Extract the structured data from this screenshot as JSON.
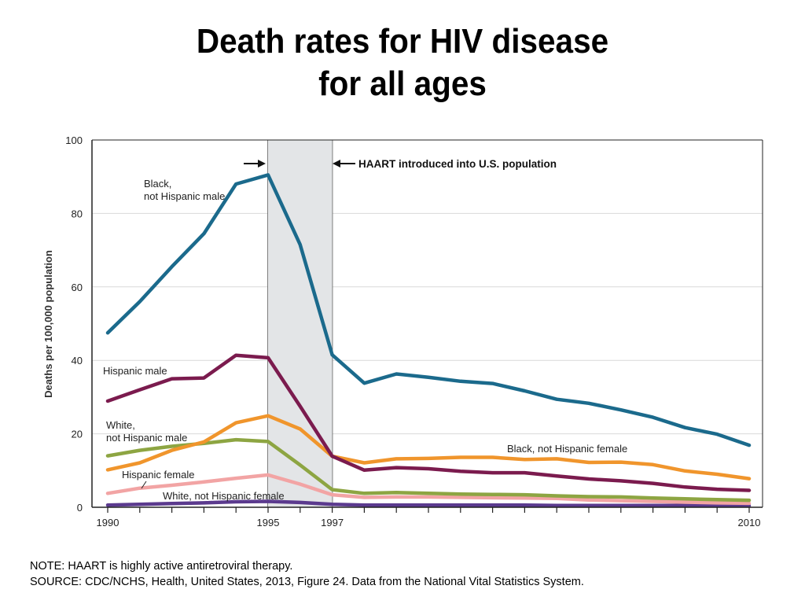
{
  "slide": {
    "title_line1": "Death rates for HIV disease",
    "title_line2": "for all ages",
    "note": "NOTE: HAART is highly active antiretroviral therapy.",
    "source": "SOURCE: CDC/NCHS, Health, United States, 2013, Figure 24. Data from the National Vital Statistics System."
  },
  "chart_data": {
    "type": "line",
    "title": "",
    "xlabel": "",
    "ylabel": "Deaths per 100,000 population",
    "xlim": [
      1990,
      2010
    ],
    "ylim": [
      0,
      100
    ],
    "x_tick_labels": [
      "1990",
      "1995",
      "1997",
      "2010"
    ],
    "y_tick_labels": [
      "0",
      "20",
      "40",
      "60",
      "80",
      "100"
    ],
    "grid": "horizontal",
    "shaded_period": {
      "start": 1995,
      "end": 1997,
      "color": "#e3e5e7"
    },
    "annotation": "HAART introduced into U.S. population",
    "x": [
      1990,
      1991,
      1992,
      1993,
      1994,
      1995,
      1996,
      1997,
      1998,
      1999,
      2000,
      2001,
      2002,
      2003,
      2004,
      2005,
      2006,
      2007,
      2008,
      2009,
      2010
    ],
    "series": [
      {
        "name": "Black, not Hispanic male",
        "color": "#1b6a8c",
        "values": [
          47.5,
          56,
          65.5,
          74.5,
          88,
          90.5,
          71.5,
          41.5,
          33.8,
          36.3,
          35.4,
          34.3,
          33.7,
          31.7,
          29.4,
          28.3,
          26.5,
          24.5,
          21.7,
          19.9,
          16.9
        ]
      },
      {
        "name": "Hispanic male",
        "color": "#7b1b4e",
        "values": [
          28.9,
          32,
          35,
          35.2,
          41.4,
          40.7,
          27.5,
          13.9,
          10.1,
          10.8,
          10.5,
          9.8,
          9.4,
          9.4,
          8.5,
          7.7,
          7.2,
          6.5,
          5.5,
          4.9,
          4.6
        ]
      },
      {
        "name": "Black, not Hispanic female",
        "color": "#f0952c",
        "values": [
          10.2,
          12.1,
          15.5,
          17.8,
          23,
          24.9,
          21.3,
          13.9,
          12.1,
          13.2,
          13.3,
          13.6,
          13.6,
          13,
          13.2,
          12.2,
          12.3,
          11.6,
          9.9,
          9,
          7.8
        ]
      },
      {
        "name": "White, not Hispanic male",
        "color": "#8da542",
        "values": [
          14,
          15.5,
          16.6,
          17.4,
          18.4,
          17.9,
          11.5,
          4.8,
          3.8,
          4,
          3.8,
          3.6,
          3.5,
          3.4,
          3.1,
          2.9,
          2.8,
          2.5,
          2.3,
          2.1,
          1.9
        ]
      },
      {
        "name": "Hispanic female",
        "color": "#f2a4a4",
        "values": [
          3.8,
          5.2,
          6,
          6.9,
          7.9,
          8.8,
          6.3,
          3.4,
          2.7,
          2.8,
          2.8,
          2.7,
          2.6,
          2.5,
          2.4,
          2,
          1.8,
          1.6,
          1.4,
          1.2,
          1.1
        ]
      },
      {
        "name": "White, not Hispanic female",
        "color": "#5b3a8e",
        "values": [
          0.6,
          0.8,
          1,
          1.2,
          1.5,
          1.6,
          1.3,
          0.8,
          0.6,
          0.6,
          0.6,
          0.6,
          0.6,
          0.6,
          0.5,
          0.5,
          0.5,
          0.5,
          0.5,
          0.5,
          0.4
        ]
      }
    ]
  }
}
